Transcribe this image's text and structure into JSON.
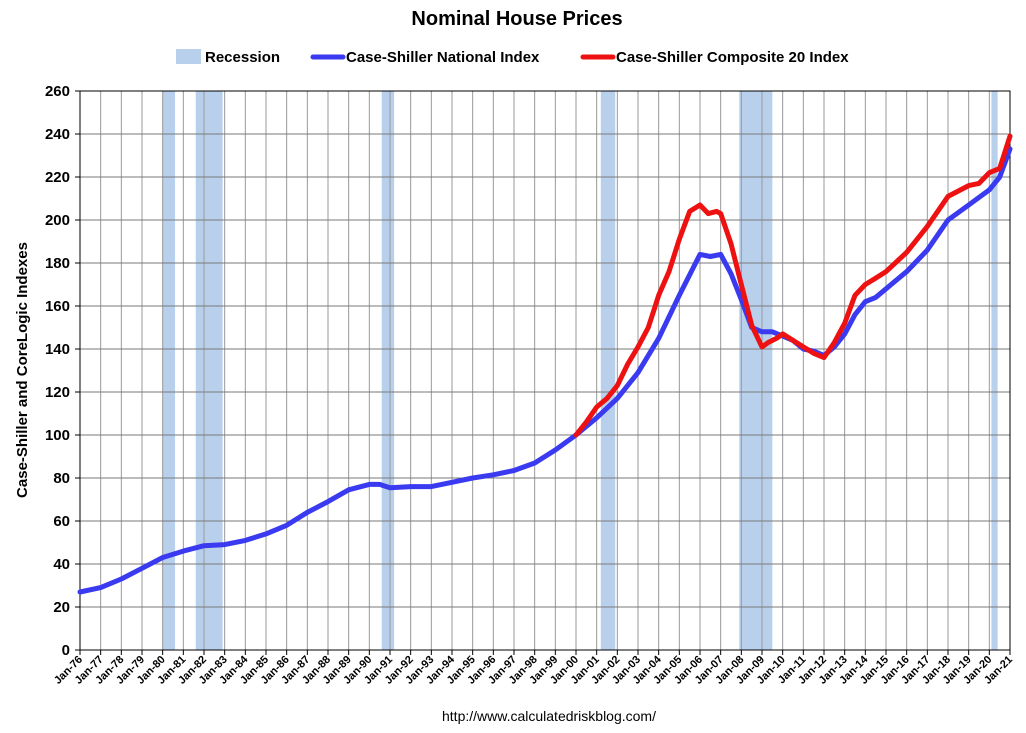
{
  "chart_data": {
    "type": "line",
    "title": "Nominal House Prices",
    "ylabel": "Case-Shiller and CoreLogic Indexes",
    "xlabel": "",
    "source": "http://www.calculatedriskblog.com/",
    "ylim": [
      0,
      260
    ],
    "y_ticks": [
      0,
      20,
      40,
      60,
      80,
      100,
      120,
      140,
      160,
      180,
      200,
      220,
      240,
      260
    ],
    "x_range": [
      1976.0,
      2021.0
    ],
    "x_tick_labels": [
      "Jan-76",
      "Jan-77",
      "Jan-78",
      "Jan-79",
      "Jan-80",
      "Jan-81",
      "Jan-82",
      "Jan-83",
      "Jan-84",
      "Jan-85",
      "Jan-86",
      "Jan-87",
      "Jan-88",
      "Jan-89",
      "Jan-90",
      "Jan-91",
      "Jan-92",
      "Jan-93",
      "Jan-94",
      "Jan-95",
      "Jan-96",
      "Jan-97",
      "Jan-98",
      "Jan-99",
      "Jan-00",
      "Jan-01",
      "Jan-02",
      "Jan-03",
      "Jan-04",
      "Jan-05",
      "Jan-06",
      "Jan-07",
      "Jan-08",
      "Jan-09",
      "Jan-10",
      "Jan-11",
      "Jan-12",
      "Jan-13",
      "Jan-14",
      "Jan-15",
      "Jan-16",
      "Jan-17",
      "Jan-18",
      "Jan-19",
      "Jan-20",
      "Jan-21"
    ],
    "grid": true,
    "legend": [
      {
        "name": "Recession",
        "color": "#b8d0ec",
        "kind": "box"
      },
      {
        "name": "Case-Shiller National Index",
        "color": "#3a3af0",
        "kind": "line"
      },
      {
        "name": "Case-Shiller Composite 20 Index",
        "color": "#ee1111",
        "kind": "line"
      }
    ],
    "recessions": [
      {
        "start": 1980.0,
        "end": 1980.6
      },
      {
        "start": 1981.6,
        "end": 1982.9
      },
      {
        "start": 1990.6,
        "end": 1991.2
      },
      {
        "start": 2001.2,
        "end": 2001.9
      },
      {
        "start": 2007.9,
        "end": 2009.5
      },
      {
        "start": 2020.1,
        "end": 2020.4
      }
    ],
    "series": [
      {
        "name": "Case-Shiller National Index",
        "color": "#3a3af0",
        "x": [
          1976,
          1977,
          1978,
          1979,
          1980,
          1981,
          1982,
          1983,
          1984,
          1985,
          1986,
          1987,
          1988,
          1989,
          1990,
          1990.5,
          1991,
          1992,
          1993,
          1994,
          1995,
          1996,
          1997,
          1998,
          1999,
          2000,
          2001,
          2002,
          2003,
          2004,
          2005,
          2006,
          2006.5,
          2007,
          2007.5,
          2008,
          2008.5,
          2009,
          2009.5,
          2010,
          2010.5,
          2011,
          2011.5,
          2012,
          2012.5,
          2013,
          2013.5,
          2014,
          2014.5,
          2015,
          2016,
          2017,
          2018,
          2019,
          2020,
          2020.5,
          2021
        ],
        "y": [
          27,
          29,
          33,
          38,
          43,
          46,
          48.5,
          49,
          51,
          54,
          58,
          64,
          69,
          74.5,
          77,
          77,
          75.5,
          76,
          76,
          78,
          80,
          81.5,
          83.5,
          87,
          93,
          100,
          108,
          117,
          129,
          145,
          165,
          184,
          183,
          184,
          175,
          163,
          150,
          148,
          148,
          146,
          144,
          140,
          139,
          137,
          141,
          147,
          156,
          162,
          164,
          168,
          176,
          186,
          200,
          207,
          214,
          220,
          233
        ]
      },
      {
        "name": "Case-Shiller Composite 20 Index",
        "color": "#ee1111",
        "x": [
          2000,
          2000.5,
          2001,
          2001.5,
          2002,
          2002.5,
          2003,
          2003.5,
          2004,
          2004.5,
          2005,
          2005.5,
          2006,
          2006.4,
          2006.8,
          2007,
          2007.5,
          2008,
          2008.5,
          2009,
          2009.3,
          2009.7,
          2010,
          2010.5,
          2011,
          2011.5,
          2012,
          2012.5,
          2013,
          2013.5,
          2014,
          2014.5,
          2015,
          2016,
          2017,
          2018,
          2019,
          2019.5,
          2020,
          2020.5,
          2020.7,
          2021
        ],
        "y": [
          100,
          106,
          113,
          117,
          123,
          133,
          141,
          150,
          165,
          176,
          191,
          204,
          207,
          203,
          204,
          203,
          189,
          170,
          151,
          141,
          143,
          145,
          147,
          144,
          141,
          138,
          136,
          143,
          152,
          165,
          170,
          173,
          176,
          185,
          197,
          211,
          216,
          217,
          222,
          224,
          230,
          239
        ]
      }
    ]
  }
}
